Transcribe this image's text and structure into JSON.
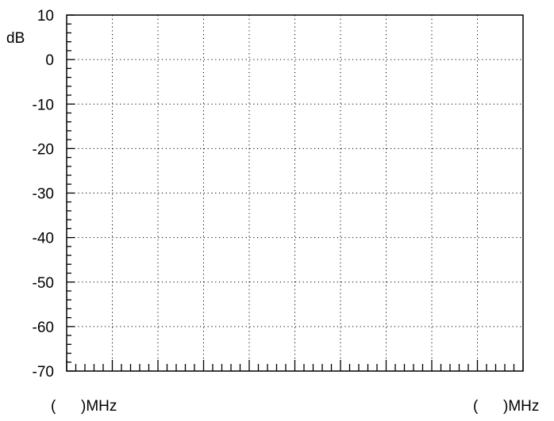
{
  "chart_data": {
    "type": "line",
    "title": "",
    "ylabel": "dB",
    "xlabel": "",
    "ylim": [
      -70,
      10
    ],
    "yticks": [
      10,
      0,
      -10,
      -20,
      -30,
      -40,
      -50,
      -60,
      -70
    ],
    "grid": true,
    "grid_style": "dotted",
    "x_major_divisions": 10,
    "x_minor_per_major": 5,
    "series": []
  },
  "freq_label_left": "(      )MHz",
  "freq_label_right": "(      )MHz",
  "colors": {
    "axis": "#000000",
    "grid": "#000000",
    "background": "#ffffff"
  }
}
